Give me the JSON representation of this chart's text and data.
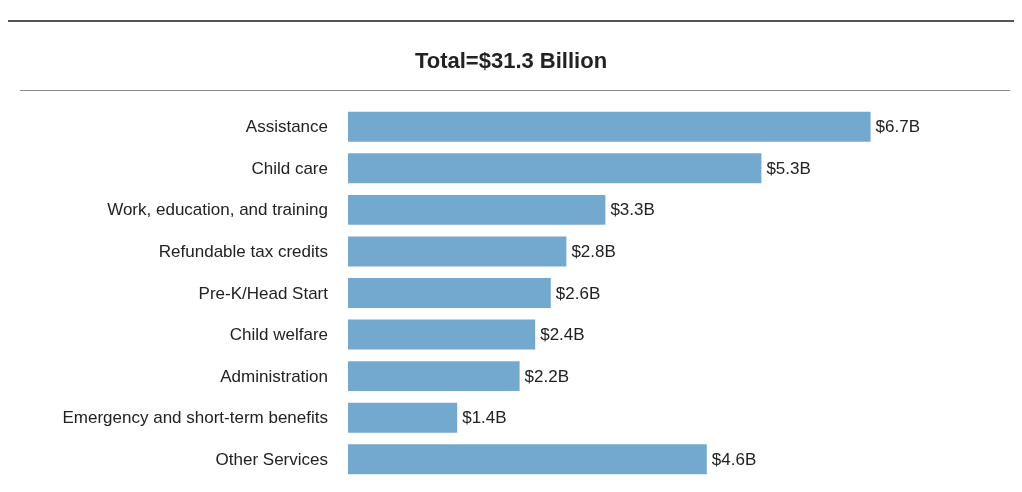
{
  "chart_data": {
    "type": "bar",
    "orientation": "horizontal",
    "title": "Total=$31.3 Billion",
    "categories": [
      "Assistance",
      "Child care",
      "Work, education, and training",
      "Refundable tax credits",
      "Pre-K/Head Start",
      "Child welfare",
      "Administration",
      "Emergency and short-term benefits",
      "Other Services"
    ],
    "values": [
      6.7,
      5.3,
      3.3,
      2.8,
      2.6,
      2.4,
      2.2,
      1.4,
      4.6
    ],
    "value_labels": [
      "$6.7B",
      "$5.3B",
      "$3.3B",
      "$2.8B",
      "$2.6B",
      "$2.4B",
      "$2.2B",
      "$1.4B",
      "$4.6B"
    ],
    "color": "#74a9cf"
  }
}
